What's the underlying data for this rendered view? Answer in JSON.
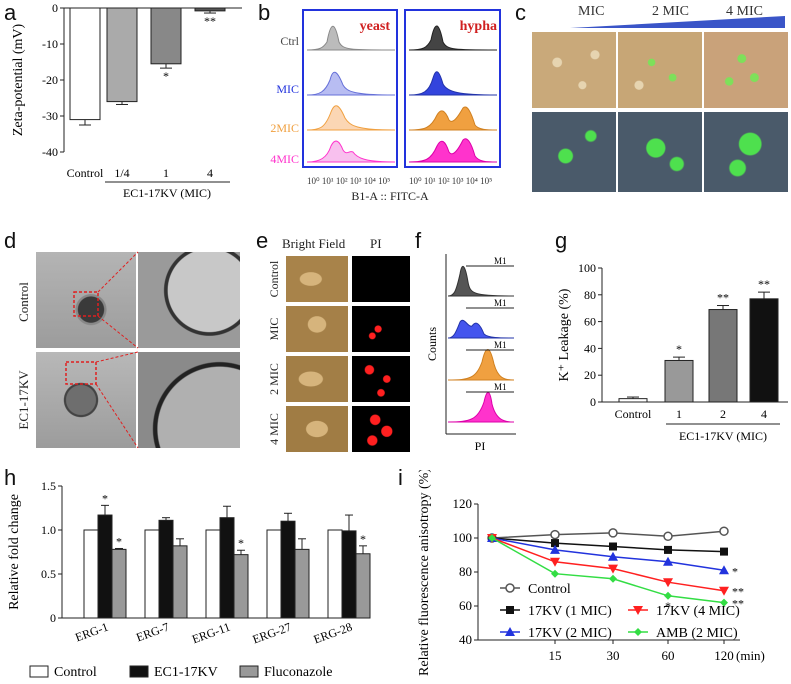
{
  "panel_labels": {
    "a": "a",
    "b": "b",
    "c": "c",
    "d": "d",
    "e": "e",
    "f": "f",
    "g": "g",
    "h": "h",
    "i": "i"
  },
  "colors": {
    "grey_dark": "#555555",
    "grey_mid": "#888888",
    "grey_light": "#aaaaaa",
    "blue": "#2233dd",
    "red": "#ff2020",
    "orange": "#f0a040",
    "magenta": "#ff33cc",
    "green": "#33dd44",
    "fl_green": "#55ee55"
  },
  "panel_b": {
    "cols": [
      "yeast",
      "hypha"
    ],
    "rows": [
      "Ctrl",
      "MIC",
      "2MIC",
      "4MIC"
    ],
    "ticks": [
      "10⁰",
      "10¹",
      "10²",
      "10³",
      "10⁴",
      "10⁵"
    ],
    "xlabel": "B1-A :: FITC-A"
  },
  "panel_c": {
    "labels": [
      "MIC",
      "2 MIC",
      "4 MIC"
    ]
  },
  "panel_d": {
    "rows": [
      "Control",
      "EC1-17KV"
    ]
  },
  "panel_e": {
    "cols": [
      "Bright Field",
      "PI"
    ],
    "rows": [
      "Control",
      "MIC",
      "2 MIC",
      "4 MIC"
    ]
  },
  "panel_f": {
    "ylabel": "Counts",
    "xlabel": "PI",
    "marker": "M1"
  },
  "chart_data": [
    {
      "id": "a",
      "type": "bar",
      "categories": [
        "Control",
        "1/4",
        "1",
        "4"
      ],
      "values": [
        -31,
        -26,
        -15.5,
        -0.8
      ],
      "errors": [
        1.5,
        0.8,
        1.2,
        0.6
      ],
      "sig": [
        "",
        "",
        "*",
        "**"
      ],
      "ylabel": "Zeta-potential (mV)",
      "group_label": "EC1-17KV (MIC)",
      "ylim": [
        -40,
        0
      ],
      "yticks": [
        0,
        -10,
        -20,
        -30,
        -40
      ]
    },
    {
      "id": "g",
      "type": "bar",
      "categories": [
        "Control",
        "1",
        "2",
        "4"
      ],
      "values": [
        2.5,
        31,
        69,
        77
      ],
      "errors": [
        1.2,
        2.5,
        3,
        5
      ],
      "sig": [
        "",
        "*",
        "**",
        "**"
      ],
      "ylabel": "K⁺ Leakage (%)",
      "group_label": "EC1-17KV (MIC)",
      "ylim": [
        0,
        100
      ],
      "yticks": [
        0,
        20,
        40,
        60,
        80,
        100
      ]
    },
    {
      "id": "h",
      "type": "bar",
      "categories": [
        "ERG-1",
        "ERG-7",
        "ERG-11",
        "ERG-27",
        "ERG-28"
      ],
      "series": [
        {
          "name": "Control",
          "values": [
            1,
            1,
            1,
            1,
            1
          ],
          "errors": [
            0,
            0,
            0,
            0,
            0
          ],
          "sig": [
            "",
            "",
            "",
            "",
            ""
          ]
        },
        {
          "name": "EC1-17KV",
          "values": [
            1.17,
            1.11,
            1.14,
            1.1,
            0.99
          ],
          "errors": [
            0.11,
            0.03,
            0.13,
            0.09,
            0.18
          ],
          "sig": [
            "*",
            "",
            "",
            "",
            ""
          ]
        },
        {
          "name": "Fluconazole",
          "values": [
            0.78,
            0.82,
            0.72,
            0.78,
            0.73
          ],
          "errors": [
            0.01,
            0.08,
            0.05,
            0.12,
            0.09
          ],
          "sig": [
            "*",
            "",
            "*",
            "",
            "*"
          ]
        }
      ],
      "ylabel": "Relative fold change",
      "ylim": [
        0,
        1.5
      ],
      "yticks": [
        0,
        0.5,
        1.0,
        1.5
      ],
      "ytick_labels": [
        "0",
        "0.5",
        "1.0",
        "1.5"
      ]
    },
    {
      "id": "i",
      "type": "line",
      "x_labels": [
        "15",
        "30",
        "60",
        "120"
      ],
      "x_unit": "(min)",
      "series": [
        {
          "name": "Control",
          "values": [
            100,
            102,
            103,
            101,
            104
          ],
          "color": "#555555",
          "marker": "circle-open"
        },
        {
          "name": "17KV (1 MIC)",
          "values": [
            100,
            97,
            95,
            93,
            92
          ],
          "color": "#111111",
          "marker": "square"
        },
        {
          "name": "17KV (2 MIC)",
          "values": [
            100,
            93,
            89,
            86,
            81
          ],
          "color": "#2233dd",
          "marker": "triangle-up"
        },
        {
          "name": "17KV (4 MIC)",
          "values": [
            100,
            86,
            82,
            74,
            69
          ],
          "color": "#ff2020",
          "marker": "triangle-down"
        },
        {
          "name": "AMB (2 MIC)",
          "values": [
            100,
            79,
            76,
            66,
            62
          ],
          "color": "#33dd44",
          "marker": "diamond"
        }
      ],
      "end_sig": [
        "",
        "",
        "*",
        "**",
        "**"
      ],
      "extra_sig": [
        {
          "series": 4,
          "point": 3,
          "text": "*"
        }
      ],
      "ylabel": "Relative fluorescence anisotropy (%)",
      "ylim": [
        40,
        120
      ],
      "yticks": [
        40,
        60,
        80,
        100,
        120
      ]
    }
  ]
}
